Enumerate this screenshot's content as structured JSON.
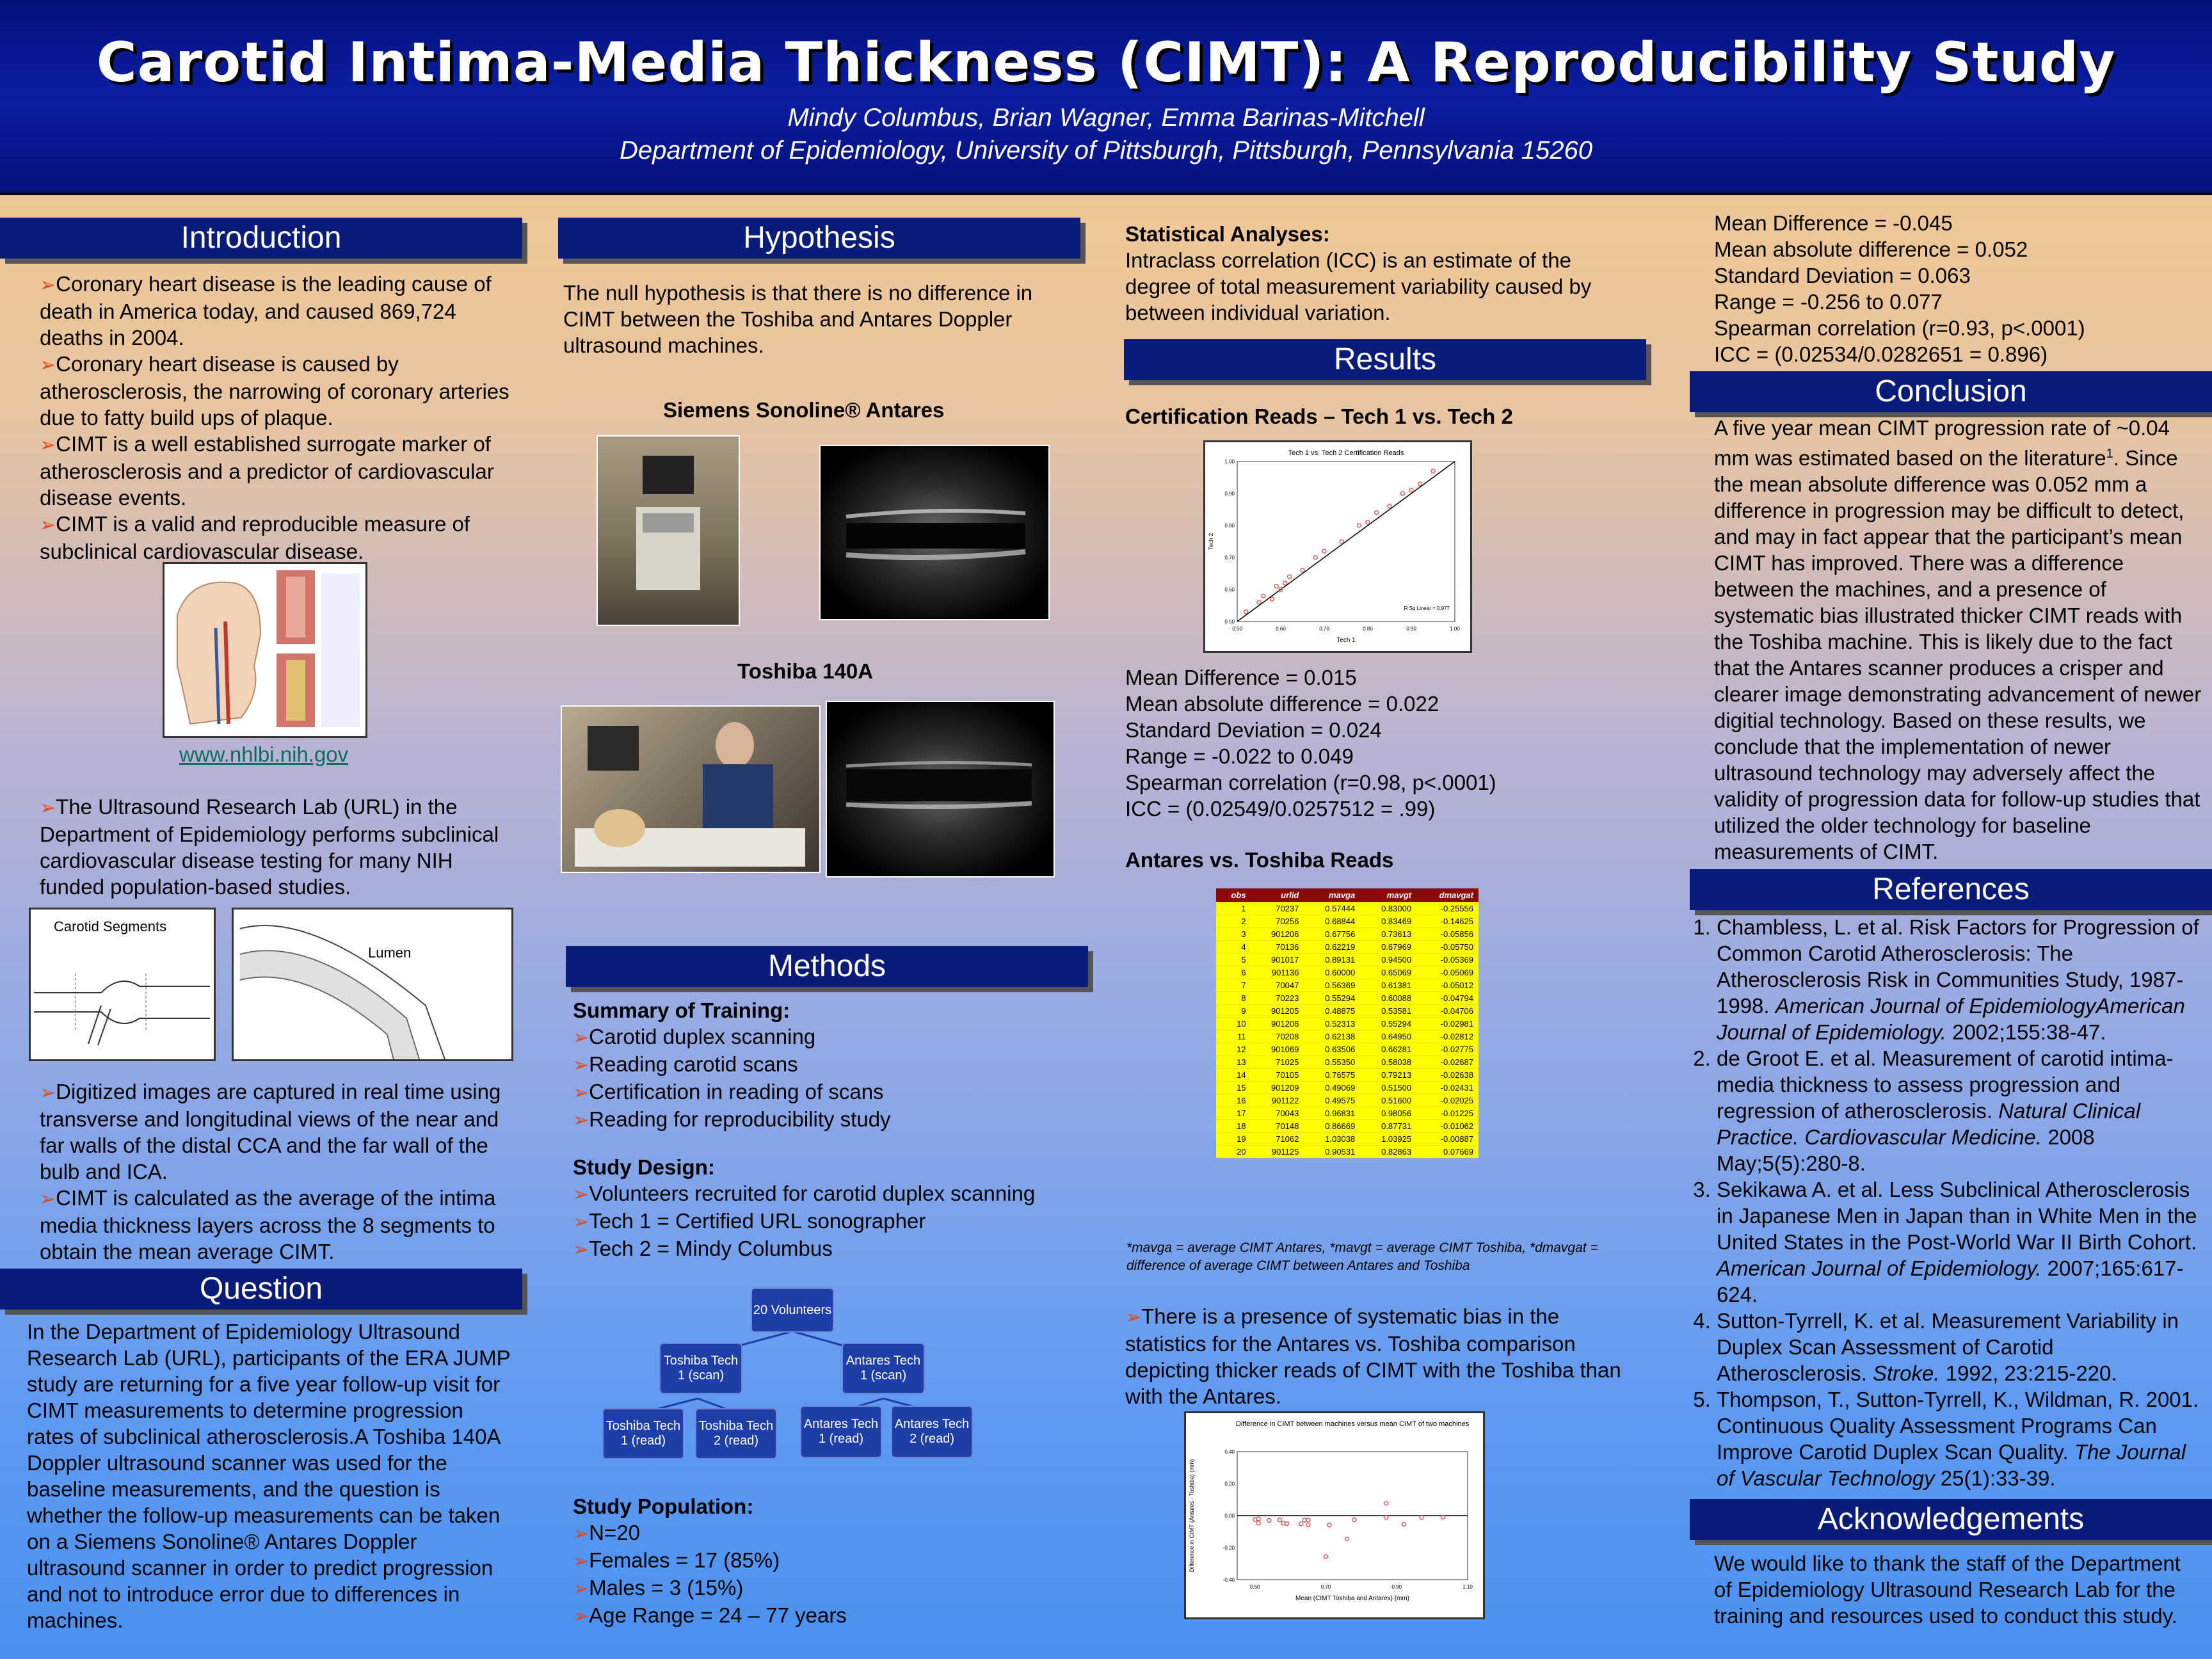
{
  "header": {
    "title": "Carotid Intima-Media Thickness (CIMT): A Reproducibility Study",
    "authors": "Mindy Columbus, Brian Wagner, Emma Barinas-Mitchell",
    "department": "Department of Epidemiology, University of Pittsburgh, Pittsburgh, Pennsylvania 15260"
  },
  "introduction": {
    "heading": "Introduction",
    "bullets": [
      "Coronary heart disease is the leading cause of death in America today, and caused 869,724 deaths in 2004.",
      "Coronary heart disease is caused by atherosclerosis, the narrowing of coronary arteries due to fatty build ups of plaque.",
      "CIMT is a well established surrogate marker of atherosclerosis and a predictor of cardiovascular disease events.",
      "CIMT is a valid and reproducible measure of subclinical cardiovascular disease."
    ],
    "link": "www.nhlbi.nih.gov",
    "bullets2": [
      "The Ultrasound Research Lab (URL) in the Department of Epidemiology performs subclinical cardiovascular disease testing for many NIH funded population-based studies."
    ],
    "segments_label": "Carotid Segments",
    "lumen_label": "Lumen",
    "bullets3": [
      "Digitized images are captured in real time using transverse and longitudinal views of the near and far walls of the distal CCA and the far wall of the bulb and ICA.",
      "CIMT is calculated as the average of the intima media thickness layers across the 8 segments to obtain the mean average CIMT."
    ]
  },
  "question": {
    "heading": "Question",
    "text": "In the Department of Epidemiology Ultrasound Research Lab (URL), participants of the ERA JUMP study are returning for a five year follow-up visit for CIMT measurements to determine progression rates of subclinical atherosclerosis.A Toshiba 140A Doppler ultrasound scanner was used for the baseline measurements, and the question is whether the follow-up measurements can be taken on a Siemens Sonoline® Antares Doppler ultrasound scanner in order to predict progression and not to introduce error due to differences in machines."
  },
  "hypothesis": {
    "heading": "Hypothesis",
    "text": "The null hypothesis is that there is no difference in CIMT between the Toshiba and Antares Doppler ultrasound machines.",
    "siemens_label": "Siemens Sonoline® Antares",
    "toshiba_label": "Toshiba 140A"
  },
  "methods": {
    "heading": "Methods",
    "training_label": "Summary of Training:",
    "training": [
      "Carotid duplex scanning",
      "Reading carotid scans",
      "Certification in reading of scans",
      "Reading for reproducibility study"
    ],
    "design_label": "Study Design:",
    "design": [
      "Volunteers recruited for carotid duplex scanning",
      "Tech 1 = Certified URL sonographer",
      "Tech 2 = Mindy Columbus"
    ],
    "flow": {
      "root": "20 Volunteers",
      "toshiba_scan": "Toshiba Tech 1 (scan)",
      "antares_scan": "Antares Tech 1 (scan)",
      "t_t1": "Toshiba Tech 1 (read)",
      "t_t2": "Toshiba Tech 2 (read)",
      "a_t1": "Antares Tech 1 (read)",
      "a_t2": "Antares Tech 2 (read)"
    },
    "population_label": "Study Population:",
    "population": [
      "N=20",
      "Females = 17 (85%)",
      "Males = 3 (15%)",
      "Age Range = 24 – 77 years"
    ]
  },
  "stats": {
    "label": "Statistical Analyses:",
    "text": "Intraclass correlation (ICC) is an estimate of the degree of total measurement variability caused by between individual variation."
  },
  "results": {
    "heading": "Results",
    "cert_label": "Certification Reads – Tech 1 vs. Tech 2",
    "cert_stats": [
      "Mean Difference = 0.015",
      "Mean absolute difference = 0.022",
      "Standard Deviation = 0.024",
      "Range =  -0.022 to 0.049",
      "Spearman correlation (r=0.98, p<.0001)",
      "ICC = (0.02549/0.0257512 = .99)"
    ],
    "antares_label": "Antares vs. Toshiba Reads",
    "table_note": "*mavga = average CIMT Antares, *mavgt = average CIMT Toshiba, *dmavgat = difference of average CIMT between Antares and Toshiba",
    "bias_text": "There is a presence of systematic bias in the statistics for the Antares vs. Toshiba comparison depicting thicker reads of CIMT with the Toshiba than with the Antares."
  },
  "table": {
    "headers": [
      "obs",
      "urlid",
      "mavga",
      "mavgt",
      "dmavgat"
    ],
    "rows": [
      [
        "1",
        "70237",
        "0.57444",
        "0.83000",
        "-0.25556"
      ],
      [
        "2",
        "70256",
        "0.68844",
        "0.83469",
        "-0.14625"
      ],
      [
        "3",
        "901206",
        "0.67756",
        "0.73613",
        "-0.05856"
      ],
      [
        "4",
        "70136",
        "0.62219",
        "0.67969",
        "-0.05750"
      ],
      [
        "5",
        "901017",
        "0.89131",
        "0.94500",
        "-0.05369"
      ],
      [
        "6",
        "901136",
        "0.60000",
        "0.65069",
        "-0.05069"
      ],
      [
        "7",
        "70047",
        "0.56369",
        "0.61381",
        "-0.05012"
      ],
      [
        "8",
        "70223",
        "0.55294",
        "0.60088",
        "-0.04794"
      ],
      [
        "9",
        "901205",
        "0.48875",
        "0.53581",
        "-0.04706"
      ],
      [
        "10",
        "901208",
        "0.52313",
        "0.55294",
        "-0.02981"
      ],
      [
        "11",
        "70208",
        "0.62138",
        "0.64950",
        "-0.02812"
      ],
      [
        "12",
        "901069",
        "0.63506",
        "0.66281",
        "-0.02775"
      ],
      [
        "13",
        "71025",
        "0.55350",
        "0.58038",
        "-0.02687"
      ],
      [
        "14",
        "70105",
        "0.76575",
        "0.79213",
        "-0.02638"
      ],
      [
        "15",
        "901209",
        "0.49069",
        "0.51500",
        "-0.02431"
      ],
      [
        "16",
        "901122",
        "0.49575",
        "0.51600",
        "-0.02025"
      ],
      [
        "17",
        "70043",
        "0.96831",
        "0.98056",
        "-0.01225"
      ],
      [
        "18",
        "70148",
        "0.86669",
        "0.87731",
        "-0.01062"
      ],
      [
        "19",
        "71062",
        "1.03038",
        "1.03925",
        "-0.00887"
      ],
      [
        "20",
        "901125",
        "0.90531",
        "0.82863",
        "0.07669"
      ]
    ]
  },
  "continued_stats": [
    "Mean Difference = -0.045",
    "Mean absolute difference = 0.052",
    "Standard Deviation = 0.063",
    "Range = -0.256 to 0.077",
    "Spearman correlation (r=0.93, p<.0001)",
    "ICC = (0.02534/0.0282651 = 0.896)"
  ],
  "conclusion": {
    "heading": "Conclusion",
    "text_a": "A five year mean CIMT progression rate of ~0.04 mm was estimated based on the literature",
    "sup": "1",
    "text_b": ". Since the mean absolute difference was 0.052 mm a difference in progression may be difficult to detect, and may in fact appear that the participant’s mean CIMT has improved. There was a difference between the machines, and a presence of systematic bias illustrated thicker CIMT reads with the Toshiba machine. This is likely due to the fact that the Antares scanner produces a crisper and clearer image demonstrating advancement of newer digitial technology. Based on these results, we conclude that the implementation of newer ultrasound technology may adversely affect the validity of progression data for follow-up studies that utilized the older technology for baseline measurements of CIMT."
  },
  "references": {
    "heading": "References",
    "items": [
      {
        "plain": "Chambless, L. et al. Risk Factors for Progression of Common Carotid Atherosclerosis: The Atherosclerosis Risk in Communities Study, 1987-1998. ",
        "ital": "American Journal of EpidemiologyAmerican Journal of Epidemiology.",
        "tail": " 2002;155:38-47."
      },
      {
        "plain": "de Groot E. et al. Measurement of carotid intima-media thickness to assess progression and regression of atherosclerosis. ",
        "ital": "Natural Clinical Practice. Cardiovascular Medicine.",
        "tail": " 2008 May;5(5):280-8."
      },
      {
        "plain": "Sekikawa A. et al. Less Subclinical Atherosclerosis in Japanese Men in Japan than in White Men in the United States in the Post-World War II Birth Cohort. ",
        "ital": "American Journal of Epidemiology.",
        "tail": " 2007;165:617-624."
      },
      {
        "plain": "Sutton-Tyrrell, K. et al. Measurement Variability in Duplex Scan Assessment of Carotid Atherosclerosis. ",
        "ital": "Stroke.",
        "tail": " 1992, 23:215-220."
      },
      {
        "plain": "Thompson, T., Sutton-Tyrrell, K., Wildman, R. 2001. Continuous Quality Assessment Programs Can Improve Carotid Duplex Scan Quality. ",
        "ital": "The Journal of Vascular Technology",
        "tail": " 25(1):33-39."
      }
    ]
  },
  "acknowledgements": {
    "heading": "Acknowledgements",
    "text": "We would like to thank the staff of the Department of Epidemiology Ultrasound Research Lab for the training and resources used to conduct this study."
  },
  "chart_data": [
    {
      "type": "scatter",
      "title": "Tech 1 vs. Tech 2 Certification Reads",
      "xlabel": "Tech 1",
      "ylabel": "Tech 2",
      "annotation": "R Sq Linear = 0.977",
      "xlim": [
        0.5,
        1.0
      ],
      "ylim": [
        0.5,
        1.0
      ],
      "x": [
        0.52,
        0.55,
        0.56,
        0.58,
        0.59,
        0.6,
        0.61,
        0.62,
        0.65,
        0.68,
        0.7,
        0.74,
        0.78,
        0.8,
        0.82,
        0.85,
        0.88,
        0.9,
        0.92,
        0.95
      ],
      "y": [
        0.53,
        0.56,
        0.58,
        0.57,
        0.61,
        0.6,
        0.62,
        0.64,
        0.66,
        0.7,
        0.72,
        0.75,
        0.8,
        0.81,
        0.84,
        0.86,
        0.9,
        0.91,
        0.93,
        0.97
      ]
    },
    {
      "type": "scatter",
      "title": "Difference in CIMT between machines versus mean CIMT of two machines",
      "xlabel": "Mean (CIMT Toshiba and Antares) (mm)",
      "ylabel": "Difference in CIMT (Antares - Toshiba) (mm)",
      "xlim": [
        0.45,
        1.1
      ],
      "ylim": [
        -0.4,
        0.4
      ],
      "x": [
        0.7,
        0.76,
        0.71,
        0.65,
        0.92,
        0.63,
        0.59,
        0.58,
        0.51,
        0.54,
        0.64,
        0.65,
        0.57,
        0.78,
        0.5,
        0.51,
        0.97,
        0.87,
        1.03,
        0.87
      ],
      "y": [
        -0.256,
        -0.146,
        -0.059,
        -0.058,
        -0.054,
        -0.051,
        -0.05,
        -0.048,
        -0.047,
        -0.03,
        -0.028,
        -0.028,
        -0.027,
        -0.026,
        -0.024,
        -0.02,
        -0.012,
        -0.011,
        -0.009,
        0.077
      ]
    }
  ]
}
